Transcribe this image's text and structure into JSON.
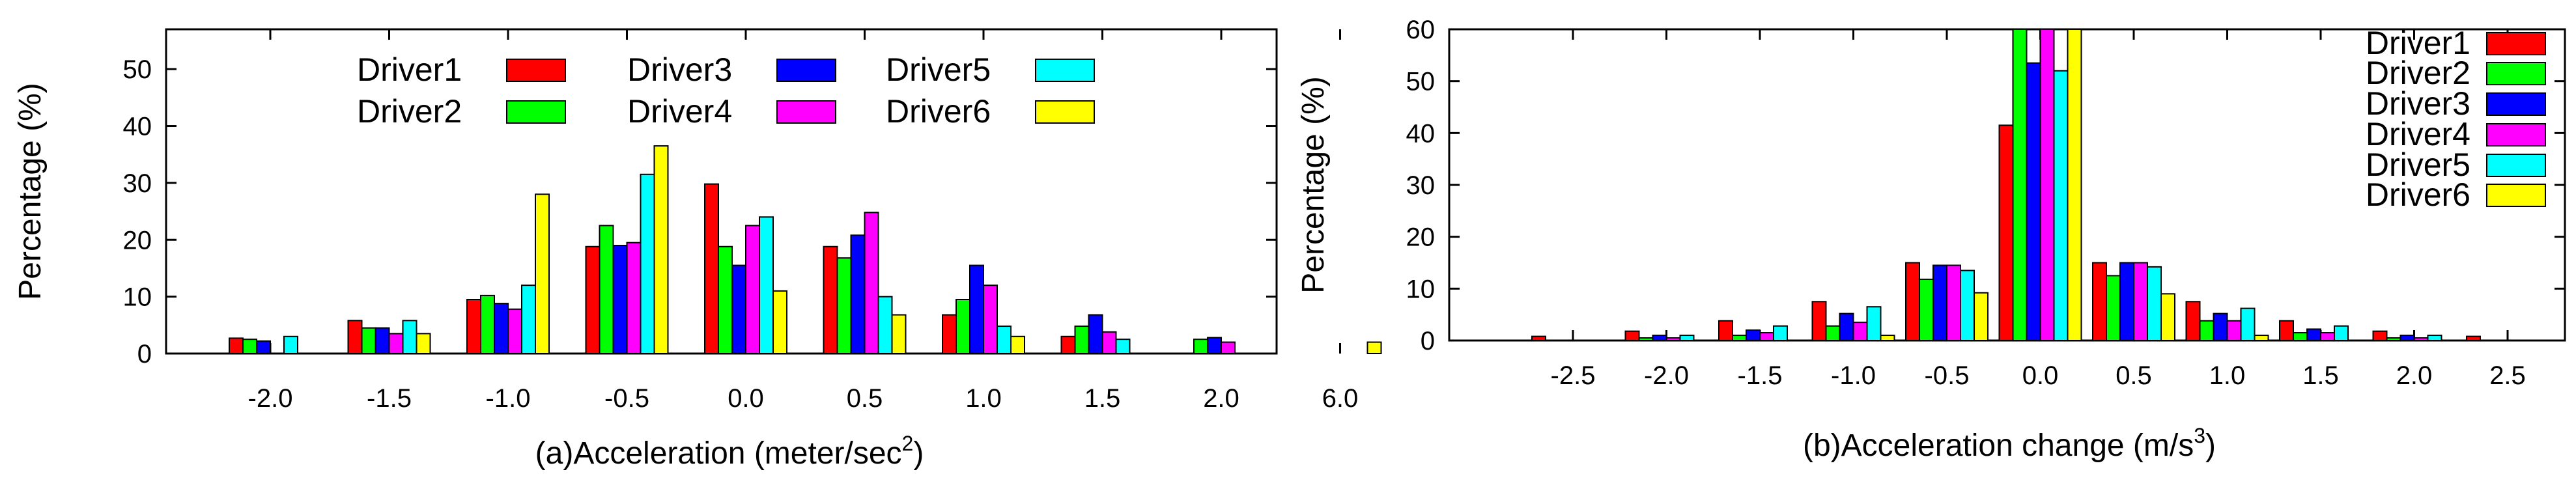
{
  "chart_data": [
    {
      "type": "bar",
      "title": "",
      "xlabel": "(a)Acceleration (meter/sec",
      "xlabel_sup": "2",
      "xlabel_tail": ")",
      "ylabel": "Percentage (%)",
      "ylim": [
        0,
        57
      ],
      "yticks": [
        0,
        10,
        20,
        30,
        40,
        50
      ],
      "legend_placement": "top-center",
      "grid": false,
      "categories": [
        "-2.0",
        "-1.5",
        "-1.0",
        "-0.5",
        "0.0",
        "0.5",
        "1.0",
        "1.5",
        "2.0",
        "6.0"
      ],
      "series": [
        {
          "name": "Driver1",
          "color": "#ff0000",
          "values": [
            2.7,
            5.8,
            9.5,
            18.8,
            29.8,
            18.8,
            6.8,
            3.0,
            0,
            0
          ]
        },
        {
          "name": "Driver2",
          "color": "#00ff00",
          "values": [
            2.5,
            4.5,
            10.2,
            22.5,
            18.8,
            16.8,
            9.5,
            4.8,
            2.5,
            0
          ]
        },
        {
          "name": "Driver3",
          "color": "#0000ff",
          "values": [
            2.2,
            4.5,
            8.8,
            19.0,
            15.5,
            20.8,
            15.5,
            6.8,
            2.8,
            0
          ]
        },
        {
          "name": "Driver4",
          "color": "#ff00ff",
          "values": [
            0,
            3.5,
            7.8,
            19.5,
            22.5,
            24.8,
            12.0,
            3.8,
            2.0,
            0
          ]
        },
        {
          "name": "Driver5",
          "color": "#00ffff",
          "values": [
            3.0,
            5.8,
            12.0,
            31.5,
            24.0,
            10.0,
            4.8,
            2.5,
            0,
            0
          ]
        },
        {
          "name": "Driver6",
          "color": "#ffff00",
          "values": [
            0,
            3.5,
            28.0,
            36.5,
            11.0,
            6.8,
            3.0,
            0,
            0,
            2.0
          ]
        }
      ]
    },
    {
      "type": "bar",
      "title": "",
      "xlabel": "(b)Acceleration change (m/s",
      "xlabel_sup": "3",
      "xlabel_tail": ")",
      "ylabel": "Percentage (%)",
      "ylim": [
        0,
        60
      ],
      "yticks": [
        0,
        10,
        20,
        30,
        40,
        50,
        60
      ],
      "legend_placement": "top-right",
      "grid": false,
      "categories": [
        "-2.5",
        "-2.0",
        "-1.5",
        "-1.0",
        "-0.5",
        "0.0",
        "0.5",
        "1.0",
        "1.5",
        "2.0",
        "2.5"
      ],
      "series": [
        {
          "name": "Driver1",
          "color": "#ff0000",
          "values": [
            0.8,
            1.8,
            3.8,
            7.5,
            15.0,
            41.5,
            15.0,
            7.5,
            3.8,
            1.8,
            0.8
          ]
        },
        {
          "name": "Driver2",
          "color": "#00ff00",
          "values": [
            0,
            0.5,
            1.0,
            2.8,
            11.8,
            60,
            12.5,
            3.8,
            1.5,
            0.5,
            0
          ]
        },
        {
          "name": "Driver3",
          "color": "#0000ff",
          "values": [
            0,
            1.0,
            2.0,
            5.2,
            14.5,
            53.5,
            15.0,
            5.2,
            2.2,
            1.0,
            0
          ]
        },
        {
          "name": "Driver4",
          "color": "#ff00ff",
          "values": [
            0,
            0.5,
            1.5,
            3.5,
            14.5,
            60,
            15.0,
            3.8,
            1.5,
            0.5,
            0
          ]
        },
        {
          "name": "Driver5",
          "color": "#00ffff",
          "values": [
            0,
            1.0,
            2.8,
            6.5,
            13.5,
            52.0,
            14.2,
            6.2,
            2.8,
            1.0,
            0
          ]
        },
        {
          "name": "Driver6",
          "color": "#ffff00",
          "values": [
            0,
            0,
            0,
            1.0,
            9.2,
            60,
            9.0,
            1.0,
            0,
            0,
            0
          ]
        }
      ]
    }
  ]
}
